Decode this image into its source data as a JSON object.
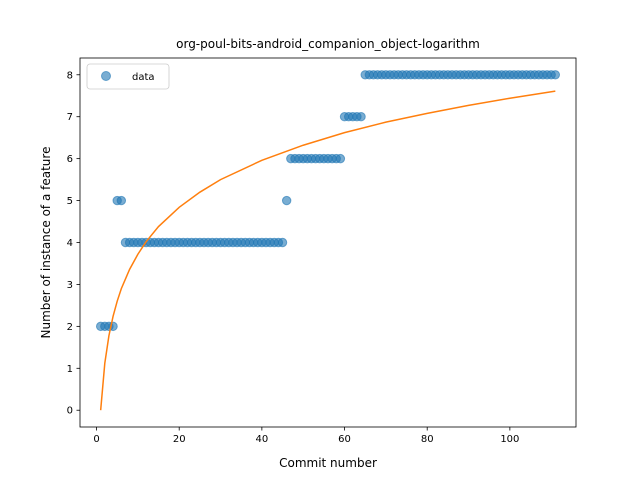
{
  "chart_data": {
    "type": "scatter",
    "title": "org-poul-bits-android_companion_object-logarithm",
    "xlabel": "Commit number",
    "ylabel": "Number of instance of a feature",
    "xlim": [
      -4,
      116
    ],
    "ylim": [
      -0.4,
      8.4
    ],
    "xticks": [
      "0",
      "20",
      "40",
      "60",
      "80",
      "100"
    ],
    "yticks": [
      "0",
      "1",
      "2",
      "3",
      "4",
      "5",
      "6",
      "7",
      "8"
    ],
    "grid": false,
    "legend": {
      "placement": "top-left",
      "entries": [
        "data"
      ]
    },
    "colors": {
      "points": "#1f77b4",
      "fit": "#ff7f0e"
    },
    "series": [
      {
        "name": "data",
        "kind": "points",
        "x": [
          1,
          2,
          3,
          4,
          5,
          6,
          7,
          8,
          9,
          10,
          11,
          12,
          13,
          14,
          15,
          16,
          17,
          18,
          19,
          20,
          21,
          22,
          23,
          24,
          25,
          26,
          27,
          28,
          29,
          30,
          31,
          32,
          33,
          34,
          35,
          36,
          37,
          38,
          39,
          40,
          41,
          42,
          43,
          44,
          45,
          46,
          47,
          48,
          49,
          50,
          51,
          52,
          53,
          54,
          55,
          56,
          57,
          58,
          59,
          60,
          61,
          62,
          63,
          64,
          65,
          66,
          67,
          68,
          69,
          70,
          71,
          72,
          73,
          74,
          75,
          76,
          77,
          78,
          79,
          80,
          81,
          82,
          83,
          84,
          85,
          86,
          87,
          88,
          89,
          90,
          91,
          92,
          93,
          94,
          95,
          96,
          97,
          98,
          99,
          100,
          101,
          102,
          103,
          104,
          105,
          106,
          107,
          108,
          109,
          110,
          111
        ],
        "y": [
          2,
          2,
          2,
          2,
          5,
          5,
          4,
          4,
          4,
          4,
          4,
          4,
          4,
          4,
          4,
          4,
          4,
          4,
          4,
          4,
          4,
          4,
          4,
          4,
          4,
          4,
          4,
          4,
          4,
          4,
          4,
          4,
          4,
          4,
          4,
          4,
          4,
          4,
          4,
          4,
          4,
          4,
          4,
          4,
          4,
          5,
          6,
          6,
          6,
          6,
          6,
          6,
          6,
          6,
          6,
          6,
          6,
          6,
          6,
          7,
          7,
          7,
          7,
          7,
          8,
          8,
          8,
          8,
          8,
          8,
          8,
          8,
          8,
          8,
          8,
          8,
          8,
          8,
          8,
          8,
          8,
          8,
          8,
          8,
          8,
          8,
          8,
          8,
          8,
          8,
          8,
          8,
          8,
          8,
          8,
          8,
          8,
          8,
          8,
          8,
          8,
          8,
          8,
          8,
          8,
          8,
          8,
          8,
          8,
          8,
          8
        ]
      },
      {
        "kind": "line",
        "equation": "y = 1.616 * ln(x)",
        "x": [
          1,
          2,
          3,
          4,
          5,
          6,
          8,
          10,
          12,
          15,
          20,
          25,
          30,
          40,
          50,
          60,
          70,
          80,
          90,
          100,
          111
        ],
        "y": [
          0,
          1.12,
          1.78,
          2.24,
          2.6,
          2.9,
          3.36,
          3.72,
          4.02,
          4.38,
          4.84,
          5.2,
          5.5,
          5.96,
          6.32,
          6.62,
          6.87,
          7.08,
          7.27,
          7.44,
          7.61
        ]
      }
    ]
  }
}
